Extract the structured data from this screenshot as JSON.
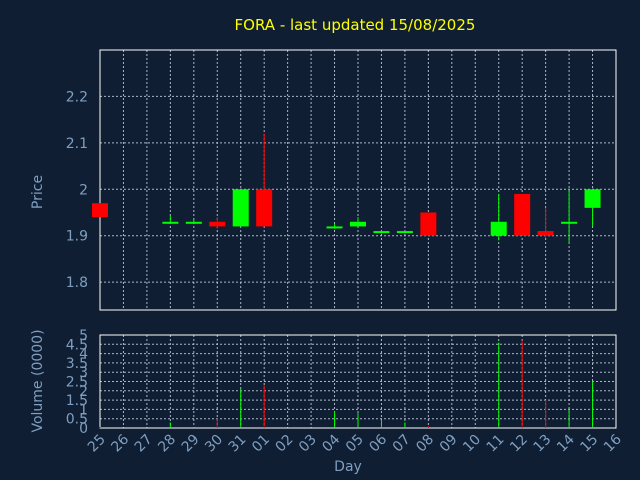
{
  "title": "FORA - last updated 15/08/2025",
  "colors": {
    "background": "#0f1e32",
    "up": "#00ff00",
    "down": "#ff0000",
    "title": "#ffff00",
    "axis_text": "#7f9fc0",
    "grid": "#c8d2e0"
  },
  "chart_data": [
    {
      "type": "candlestick",
      "ylabel": "Price",
      "ylim": [
        1.74,
        2.3
      ],
      "yticks": [
        "1.8",
        "1.9",
        "2",
        "2.1",
        "2.2"
      ],
      "ytick_values": [
        1.8,
        1.9,
        2.0,
        2.1,
        2.2
      ],
      "grid": true,
      "x_categories": [
        "25",
        "26",
        "27",
        "28",
        "29",
        "30",
        "31",
        "01",
        "02",
        "03",
        "04",
        "05",
        "06",
        "07",
        "08",
        "09",
        "10",
        "11",
        "12",
        "13",
        "14",
        "15",
        "16"
      ],
      "candles": [
        {
          "x": "25",
          "open": 1.97,
          "close": 1.94,
          "high": 1.97,
          "low": 1.94
        },
        {
          "x": "28",
          "open": 1.93,
          "close": 1.93,
          "high": 1.945,
          "low": 1.925
        },
        {
          "x": "29",
          "open": 1.93,
          "close": 1.93,
          "high": 1.935,
          "low": 1.925
        },
        {
          "x": "30",
          "open": 1.93,
          "close": 1.92,
          "high": 1.94,
          "low": 1.915
        },
        {
          "x": "31",
          "open": 1.92,
          "close": 2.0,
          "high": 2.0,
          "low": 1.92
        },
        {
          "x": "01",
          "open": 2.0,
          "close": 1.92,
          "high": 2.12,
          "low": 1.92
        },
        {
          "x": "04",
          "open": 1.92,
          "close": 1.92,
          "high": 1.925,
          "low": 1.915
        },
        {
          "x": "05",
          "open": 1.92,
          "close": 1.93,
          "high": 1.94,
          "low": 1.92
        },
        {
          "x": "06",
          "open": 1.91,
          "close": 1.91,
          "high": 1.91,
          "low": 1.905
        },
        {
          "x": "07",
          "open": 1.91,
          "close": 1.91,
          "high": 1.91,
          "low": 1.905
        },
        {
          "x": "08",
          "open": 1.95,
          "close": 1.9,
          "high": 1.95,
          "low": 1.9
        },
        {
          "x": "11",
          "open": 1.9,
          "close": 1.93,
          "high": 1.99,
          "low": 1.89
        },
        {
          "x": "12",
          "open": 1.99,
          "close": 1.9,
          "high": 1.99,
          "low": 1.9
        },
        {
          "x": "13",
          "open": 1.91,
          "close": 1.9,
          "high": 1.96,
          "low": 1.895
        },
        {
          "x": "14",
          "open": 1.93,
          "close": 1.93,
          "high": 2.0,
          "low": 1.885
        },
        {
          "x": "15",
          "open": 1.96,
          "close": 2.0,
          "high": 2.0,
          "low": 1.92
        }
      ]
    },
    {
      "type": "bar",
      "ylabel": "Volume (0000)",
      "xlabel": "Day",
      "ylim": [
        0,
        5
      ],
      "yticks": [
        "0",
        "0.5",
        "1",
        "1.5",
        "2",
        "2.5",
        "3",
        "3.5",
        "4",
        "4.5",
        "5"
      ],
      "ytick_values": [
        0,
        0.5,
        1,
        1.5,
        2,
        2.5,
        3,
        3.5,
        4,
        4.5,
        5
      ],
      "grid": true,
      "x_categories": [
        "25",
        "26",
        "27",
        "28",
        "29",
        "30",
        "31",
        "01",
        "02",
        "03",
        "04",
        "05",
        "06",
        "07",
        "08",
        "09",
        "10",
        "11",
        "12",
        "13",
        "14",
        "15",
        "16"
      ],
      "bars": [
        {
          "x": "25",
          "value": 0.05,
          "direction": "down"
        },
        {
          "x": "28",
          "value": 0.3,
          "direction": "up"
        },
        {
          "x": "29",
          "value": 0.05,
          "direction": "up"
        },
        {
          "x": "30",
          "value": 0.5,
          "direction": "down"
        },
        {
          "x": "31",
          "value": 2.1,
          "direction": "up"
        },
        {
          "x": "01",
          "value": 2.3,
          "direction": "down"
        },
        {
          "x": "04",
          "value": 0.9,
          "direction": "up"
        },
        {
          "x": "05",
          "value": 0.8,
          "direction": "up"
        },
        {
          "x": "06",
          "value": 0.45,
          "direction": "up"
        },
        {
          "x": "07",
          "value": 0.3,
          "direction": "up"
        },
        {
          "x": "08",
          "value": 0.1,
          "direction": "down"
        },
        {
          "x": "11",
          "value": 4.6,
          "direction": "up"
        },
        {
          "x": "12",
          "value": 4.7,
          "direction": "down"
        },
        {
          "x": "13",
          "value": 1.5,
          "direction": "down"
        },
        {
          "x": "14",
          "value": 1.0,
          "direction": "up"
        },
        {
          "x": "15",
          "value": 2.5,
          "direction": "up"
        }
      ]
    }
  ]
}
